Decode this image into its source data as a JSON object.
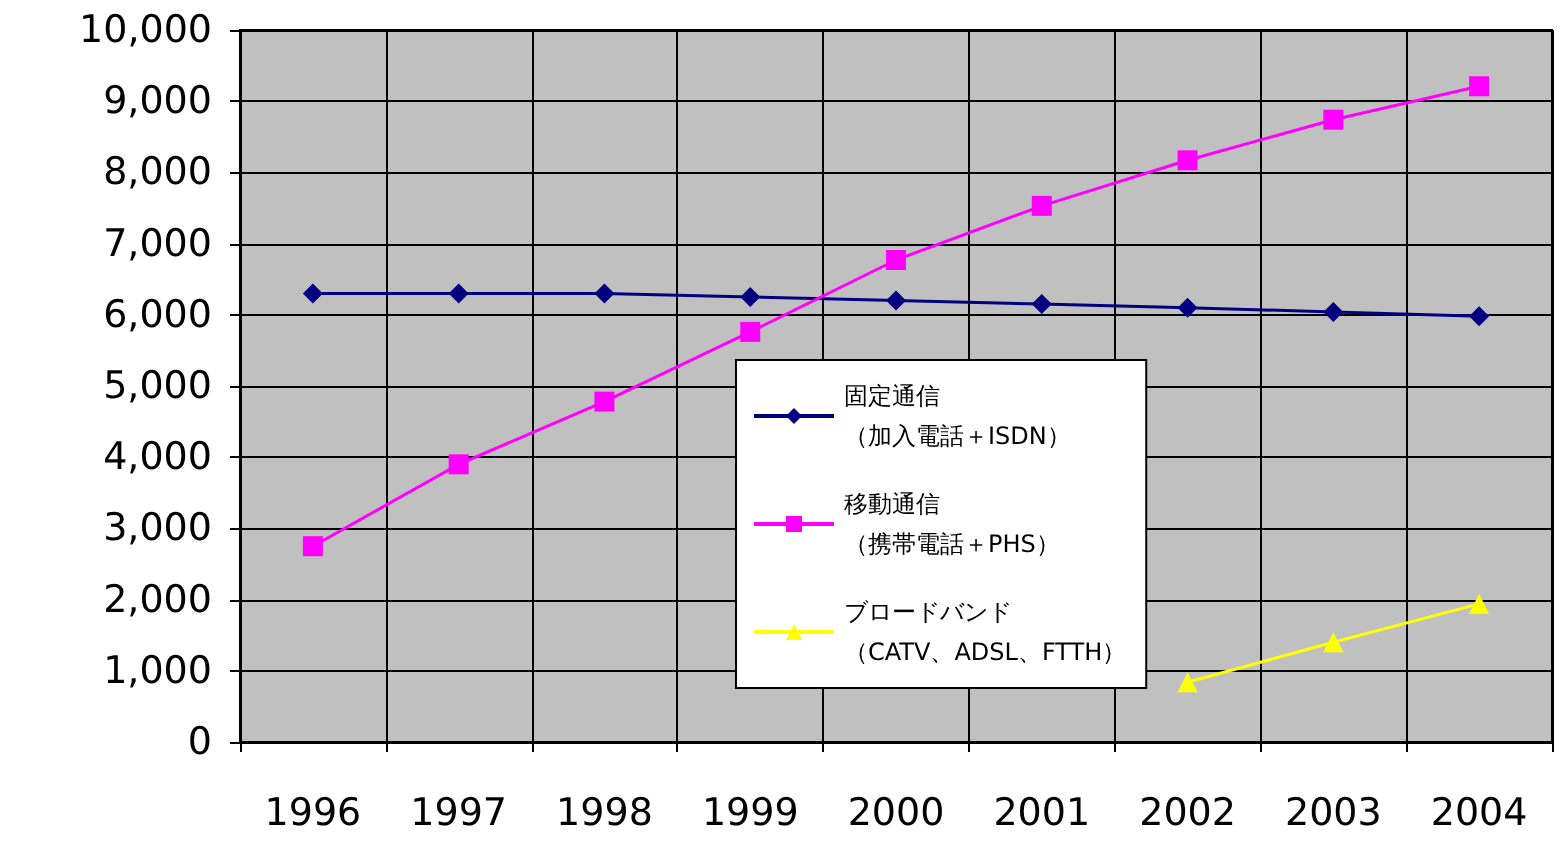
{
  "chart_data": {
    "type": "line",
    "categories": [
      "1996",
      "1997",
      "1998",
      "1999",
      "2000",
      "2001",
      "2002",
      "2003",
      "2004"
    ],
    "series": [
      {
        "name": "固定通信（加入電話＋ISDN）",
        "color": "#000080",
        "marker": "diamond",
        "values": [
          6300,
          6300,
          6300,
          6250,
          6200,
          6150,
          6100,
          6040,
          5980
        ]
      },
      {
        "name": "移動通信（携帯電話＋PHS）",
        "color": "#ff00ff",
        "marker": "square",
        "values": [
          2750,
          3900,
          4780,
          5760,
          6770,
          7530,
          8170,
          8740,
          9210
        ]
      },
      {
        "name": "ブロードバンド（CATV、ADSL、FTTH）",
        "color": "#ffff00",
        "marker": "triangle",
        "values": [
          null,
          null,
          null,
          null,
          null,
          null,
          840,
          1400,
          1940
        ]
      }
    ],
    "ylim": [
      0,
      10000
    ],
    "yticks": [
      0,
      {
        "value": 1000,
        "label": "1,000"
      },
      {
        "value": 2000,
        "label": "2,000"
      },
      {
        "value": 3000,
        "label": "3,000"
      },
      {
        "value": 4000,
        "label": "4,000"
      },
      {
        "value": 5000,
        "label": "5,000"
      },
      {
        "value": 6000,
        "label": "6,000"
      },
      {
        "value": 7000,
        "label": "7,000"
      },
      {
        "value": 8000,
        "label": "8,000"
      },
      {
        "value": 9000,
        "label": "9,000"
      },
      {
        "value": 10000,
        "label": "10,000"
      }
    ],
    "grid": true,
    "legend": "bottom"
  }
}
